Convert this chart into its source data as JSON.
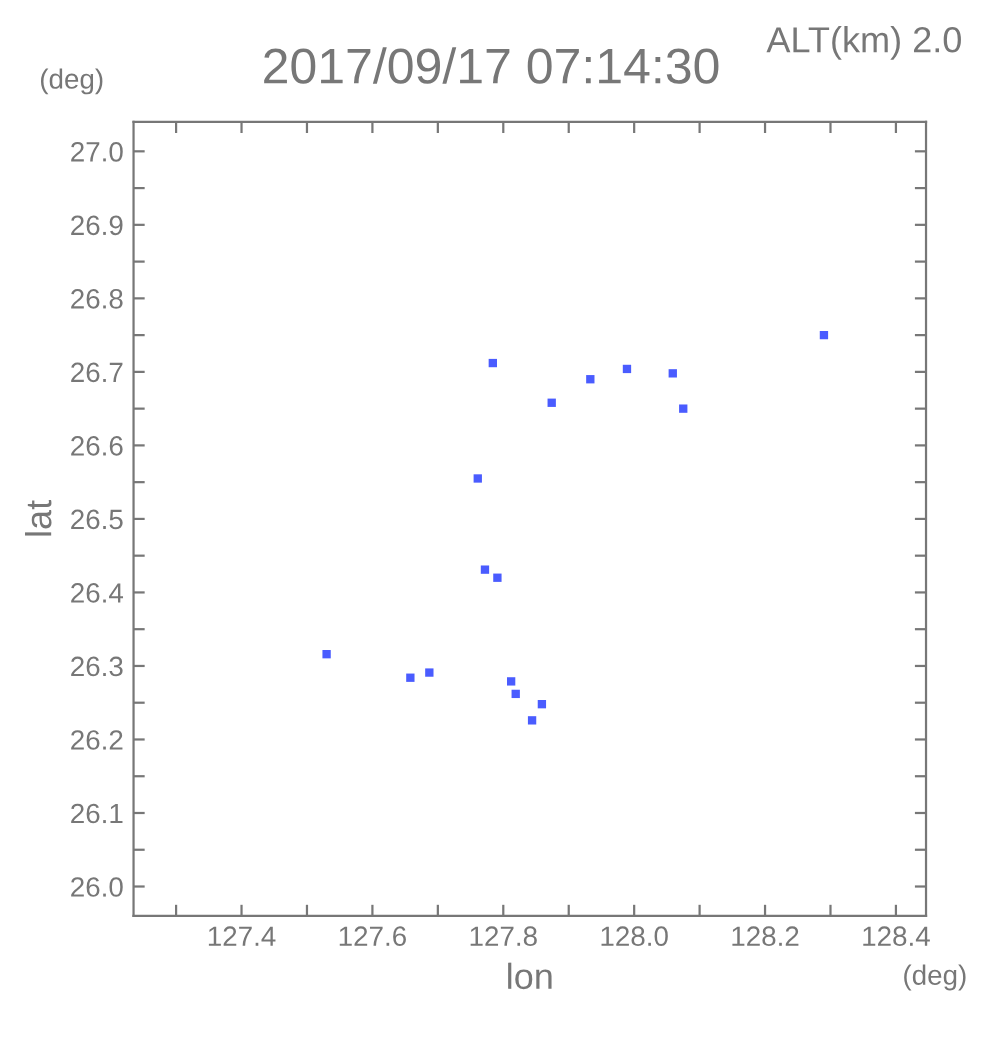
{
  "chart_data": {
    "type": "scatter",
    "title": "2017/09/17 07:14:30",
    "subtitle": "ALT(km) 2.0",
    "xlabel": "lon",
    "ylabel": "lat",
    "annotations": [
      "(deg)",
      "(deg)"
    ],
    "x": [
      127.784,
      127.874,
      127.933,
      127.989,
      128.059,
      128.075,
      128.29,
      127.761,
      127.772,
      127.791,
      127.53,
      127.658,
      127.687,
      127.812,
      127.819,
      127.859,
      127.844
    ],
    "series": [
      {
        "color": "#4a5cff",
        "values": [
          26.712,
          26.658,
          26.69,
          26.704,
          26.698,
          26.65,
          26.75,
          26.555,
          26.431,
          26.42,
          26.316,
          26.284,
          26.291,
          26.279,
          26.262,
          26.248,
          26.226
        ]
      }
    ],
    "marker": "square",
    "grid": false,
    "legend": false,
    "xlim": [
      127.235,
      128.446
    ],
    "ylim": [
      25.96,
      27.04
    ],
    "xticks": [
      {
        "value": 127.3,
        "label": null
      },
      127.4,
      {
        "value": 127.5,
        "label": null
      },
      127.6,
      {
        "value": 127.7,
        "label": null
      },
      127.8,
      {
        "value": 127.9,
        "label": null
      },
      {
        "value": 128.0,
        "label": "128.0"
      },
      {
        "value": 128.1,
        "label": null
      },
      128.2,
      {
        "value": 128.3,
        "label": null
      },
      128.4
    ],
    "yticks": [
      {
        "value": 26.0,
        "label": "26.0"
      },
      {
        "value": 26.05,
        "label": null
      },
      26.1,
      {
        "value": 26.15,
        "label": null
      },
      26.2,
      {
        "value": 26.25,
        "label": null
      },
      26.3,
      {
        "value": 26.35,
        "label": null
      },
      26.4,
      {
        "value": 26.45,
        "label": null
      },
      26.5,
      {
        "value": 26.55,
        "label": null
      },
      26.6,
      {
        "value": 26.65,
        "label": null
      },
      26.7,
      {
        "value": 26.75,
        "label": null
      },
      26.8,
      {
        "value": 26.85,
        "label": null
      },
      26.9,
      {
        "value": 26.95,
        "label": null
      },
      {
        "value": 27.0,
        "label": "27.0"
      }
    ]
  }
}
